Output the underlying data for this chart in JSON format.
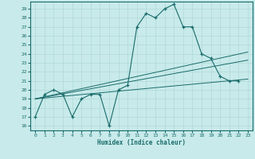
{
  "title": "",
  "xlabel": "Humidex (Indice chaleur)",
  "background_color": "#c8eaea",
  "grid_color": "#b0d8d8",
  "line_color": "#1a6b6b",
  "xlim": [
    -0.5,
    23.5
  ],
  "ylim": [
    15.5,
    29.8
  ],
  "yticks": [
    16,
    17,
    18,
    19,
    20,
    21,
    22,
    23,
    24,
    25,
    26,
    27,
    28,
    29
  ],
  "xticks": [
    0,
    1,
    2,
    3,
    4,
    5,
    6,
    7,
    8,
    9,
    10,
    11,
    12,
    13,
    14,
    15,
    16,
    17,
    18,
    19,
    20,
    21,
    22,
    23
  ],
  "main_x": [
    0,
    1,
    2,
    3,
    4,
    5,
    6,
    7,
    8,
    9,
    10,
    11,
    12,
    13,
    14,
    15,
    16,
    17,
    18,
    19,
    20,
    21,
    22
  ],
  "main_y": [
    17,
    19.5,
    20,
    19.5,
    17,
    19,
    19.5,
    19.5,
    16,
    20,
    20.5,
    27,
    28.5,
    28,
    29,
    29.5,
    27,
    27,
    24,
    23.5,
    21.5,
    21,
    21
  ],
  "line1_x": [
    0,
    23
  ],
  "line1_y": [
    19.0,
    24.2
  ],
  "line2_x": [
    0,
    23
  ],
  "line2_y": [
    19.0,
    23.3
  ],
  "line3_x": [
    0,
    23
  ],
  "line3_y": [
    19.0,
    21.2
  ]
}
